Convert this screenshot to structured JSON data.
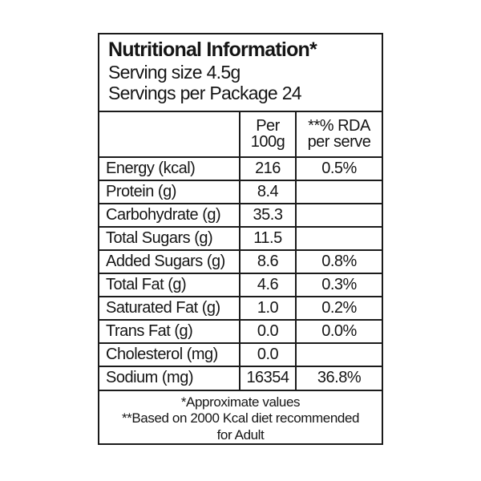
{
  "label": {
    "title": "Nutritional Information*",
    "serving_size": "Serving size 4.5g",
    "servings_per_package": "Servings per Package 24",
    "columns": {
      "nutrient": "",
      "per_line1": "Per",
      "per_line2": "100g",
      "rda_line1": "**% RDA",
      "rda_line2": "per serve"
    },
    "rows": [
      {
        "label": "Energy (kcal)",
        "per100g": "216",
        "rda": "0.5%"
      },
      {
        "label": "Protein (g)",
        "per100g": "8.4",
        "rda": ""
      },
      {
        "label": "Carbohydrate (g)",
        "per100g": "35.3",
        "rda": ""
      },
      {
        "label": "Total Sugars (g)",
        "per100g": "11.5",
        "rda": ""
      },
      {
        "label": "Added Sugars (g)",
        "per100g": "8.6",
        "rda": "0.8%"
      },
      {
        "label": "Total Fat (g)",
        "per100g": "4.6",
        "rda": "0.3%"
      },
      {
        "label": "Saturated Fat (g)",
        "per100g": "1.0",
        "rda": "0.2%"
      },
      {
        "label": "Trans Fat (g)",
        "per100g": "0.0",
        "rda": "0.0%"
      },
      {
        "label": "Cholesterol (mg)",
        "per100g": "0.0",
        "rda": ""
      },
      {
        "label": "Sodium (mg)",
        "per100g": "16354",
        "rda": "36.8%"
      }
    ],
    "footnotes": {
      "line1": "*Approximate values",
      "line2": "**Based on 2000 Kcal diet recommended",
      "line3": "for Adult"
    },
    "colors": {
      "background": "#ffffff",
      "border": "#1b1b1b",
      "text": "#151515"
    }
  }
}
